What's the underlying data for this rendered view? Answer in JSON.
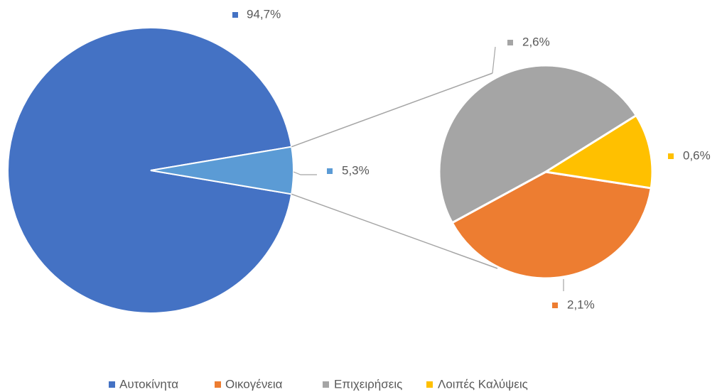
{
  "chart_data": {
    "type": "pie",
    "main": {
      "categories": [
        "Αυτοκίνητα",
        null
      ],
      "values": [
        94.7,
        5.3
      ],
      "value_labels": [
        "94,7%",
        "5,3%"
      ],
      "colors": [
        "#4472c4",
        "#5b9bd5"
      ]
    },
    "secondary": {
      "categories": [
        "Οικογένεια",
        "Επιχειρήσεις",
        "Λοιπές Καλύψεις"
      ],
      "values": [
        2.1,
        2.6,
        0.6
      ],
      "value_labels": [
        "2,1%",
        "2,6%",
        "0,6%"
      ],
      "colors": [
        "#ed7d31",
        "#a5a5a5",
        "#ffc000"
      ]
    },
    "legend": "bottom"
  }
}
